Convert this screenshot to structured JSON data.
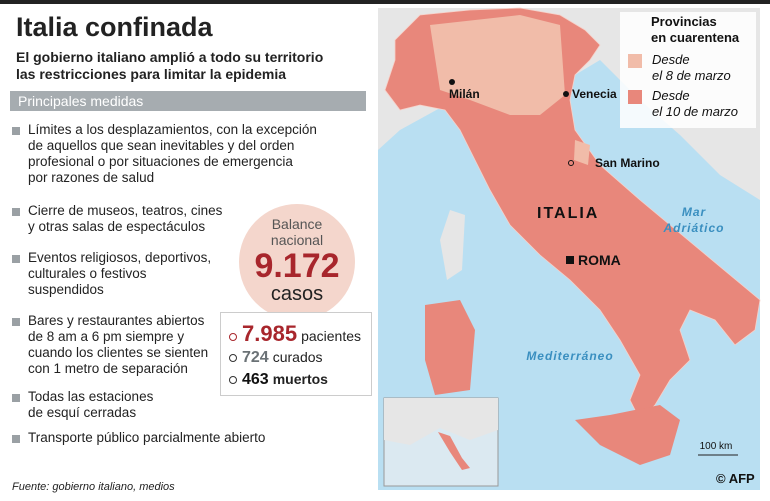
{
  "header": {
    "title": "Italia confinada",
    "subtitle": [
      "El gobierno italiano amplió a todo su territorio",
      "las restricciones para limitar la epidemia"
    ]
  },
  "section": {
    "heading": "Principales medidas",
    "bullets": [
      {
        "lines": [
          "Límites a los desplazamientos, con la excepción",
          "de aquellos que sean inevitables y del orden",
          "profesional o por situaciones de emergencia",
          "por razones de salud"
        ]
      },
      {
        "lines": [
          "Cierre de museos, teatros, cines",
          "y otras salas de espectáculos"
        ]
      },
      {
        "lines": [
          "Eventos religiosos, deportivos,",
          "culturales o festivos",
          "suspendidos"
        ]
      },
      {
        "lines": [
          "Bares y restaurantes abiertos",
          "de 8 am a 6 pm siempre y",
          "cuando los clientes se sienten",
          "con 1 metro de separación"
        ]
      },
      {
        "lines": [
          "Todas las estaciones",
          "de esquí cerradas"
        ]
      },
      {
        "lines": [
          "Transporte público parcialmente abierto"
        ]
      }
    ]
  },
  "balance": {
    "label": [
      "Balance",
      "nacional"
    ],
    "total": "9.172",
    "unit": "casos",
    "stats": [
      {
        "number": "7.985",
        "label": "pacientes"
      },
      {
        "number": "724",
        "label": "curados"
      },
      {
        "number": "463",
        "label": "muertos"
      }
    ]
  },
  "map": {
    "legend": {
      "title": [
        "Provincias",
        "en cuarentena"
      ],
      "items": [
        {
          "label": [
            "Desde",
            "el 8 de marzo"
          ],
          "color": "#f1bca9"
        },
        {
          "label": [
            "Desde",
            "el 10 de marzo"
          ],
          "color": "#e8877b"
        }
      ]
    },
    "places": [
      "Milán",
      "Venecia",
      "San Marino",
      "ITALIA",
      "ROMA"
    ],
    "seas": [
      [
        "Mar",
        "Adriático"
      ],
      [
        "Mediterráneo"
      ]
    ],
    "scale": "100 km",
    "credit": "© AFP"
  },
  "footer": {
    "source": "Fuente: gobierno italiano, medios"
  }
}
